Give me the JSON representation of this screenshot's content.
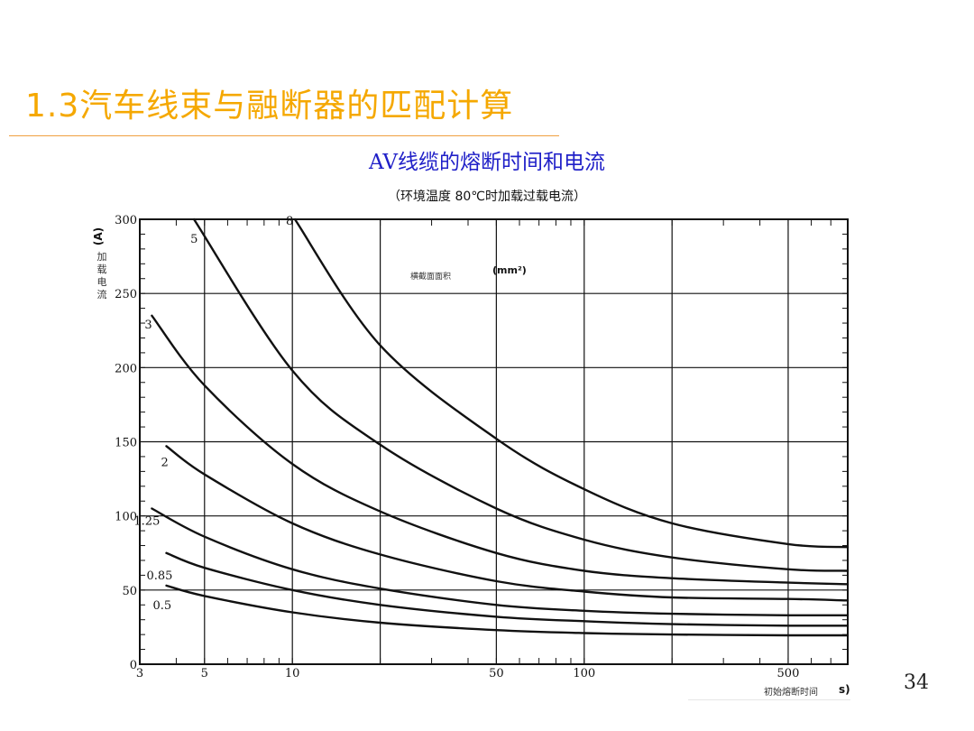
{
  "slide": {
    "title": "1.3汽车线束与融断器的匹配计算",
    "page_number": "34"
  },
  "chart_data": {
    "type": "line",
    "title": "AV线缆的熔断时间和电流",
    "subtitle": "（环境温度 80℃时加载过载电流）",
    "ylabel_unit": "(A)",
    "ylabel_text": "加载电流",
    "xlabel_text": "初始熔断时间",
    "xlabel_unit": "s)",
    "x_scale": "log",
    "xlim": [
      3,
      800
    ],
    "ylim": [
      0,
      300
    ],
    "x_tick_labels": [
      "3",
      "5",
      "10",
      "50",
      "100",
      "500"
    ],
    "x_tick_values": [
      3,
      5,
      10,
      50,
      100,
      500
    ],
    "y_tick_labels": [
      "0",
      "50",
      "100",
      "150",
      "200",
      "250",
      "300"
    ],
    "y_tick_values": [
      0,
      50,
      100,
      150,
      200,
      250,
      300
    ],
    "legend_title": "横截面面积",
    "legend_unit": "(mm²)",
    "grid": true,
    "line_color": "#111111",
    "series": [
      {
        "name": "8",
        "x": [
          10.2,
          20,
          50,
          100,
          200,
          500,
          800
        ],
        "y": [
          300,
          215,
          152,
          118,
          95,
          81,
          79
        ]
      },
      {
        "name": "5",
        "x": [
          4.6,
          10,
          20,
          50,
          100,
          200,
          500,
          800
        ],
        "y": [
          300,
          198,
          148,
          105,
          84,
          72,
          64,
          63
        ]
      },
      {
        "name": "3",
        "x": [
          3.3,
          5,
          10,
          20,
          50,
          100,
          200,
          500,
          800
        ],
        "y": [
          235,
          188,
          135,
          103,
          75,
          63,
          58,
          55,
          54
        ]
      },
      {
        "name": "2",
        "x": [
          3.7,
          5,
          10,
          20,
          50,
          100,
          200,
          500,
          800
        ],
        "y": [
          147,
          128,
          95,
          74,
          56,
          49,
          45,
          44,
          43
        ]
      },
      {
        "name": "1.25",
        "x": [
          3.3,
          5,
          10,
          20,
          50,
          100,
          200,
          500,
          800
        ],
        "y": [
          105,
          86,
          64,
          51,
          40,
          36,
          34,
          33,
          33
        ]
      },
      {
        "name": "0.85",
        "x": [
          3.7,
          5,
          10,
          20,
          50,
          100,
          200,
          500,
          800
        ],
        "y": [
          75,
          65,
          50,
          40,
          32,
          29,
          27,
          26,
          26
        ]
      },
      {
        "name": "0.5",
        "x": [
          3.7,
          5,
          10,
          20,
          50,
          100,
          200,
          500,
          800
        ],
        "y": [
          53,
          46,
          35,
          28,
          23,
          21,
          20,
          19.5,
          19.5
        ]
      }
    ]
  }
}
